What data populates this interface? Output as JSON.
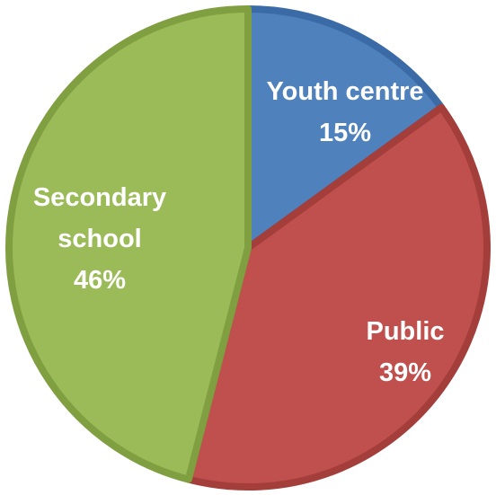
{
  "chart_data": {
    "type": "pie",
    "title": "",
    "start_angle_deg": 0,
    "direction": "clockwise",
    "slices": [
      {
        "name": "Youth centre",
        "value": 15,
        "value_label": "15%",
        "label_lines": [
          "Youth centre",
          "15%"
        ],
        "color": "#4F81BD",
        "stroke": "#3A6BA6"
      },
      {
        "name": "Public",
        "value": 39,
        "value_label": "39%",
        "label_lines": [
          "Public",
          "39%"
        ],
        "color": "#C0504D",
        "stroke": "#A33E3B"
      },
      {
        "name": "Secondary school",
        "value": 46,
        "value_label": "46%",
        "label_lines": [
          "Secondary",
          "school",
          "46%"
        ],
        "color": "#9BBB59",
        "stroke": "#7F9F40"
      }
    ],
    "legend": "none"
  }
}
